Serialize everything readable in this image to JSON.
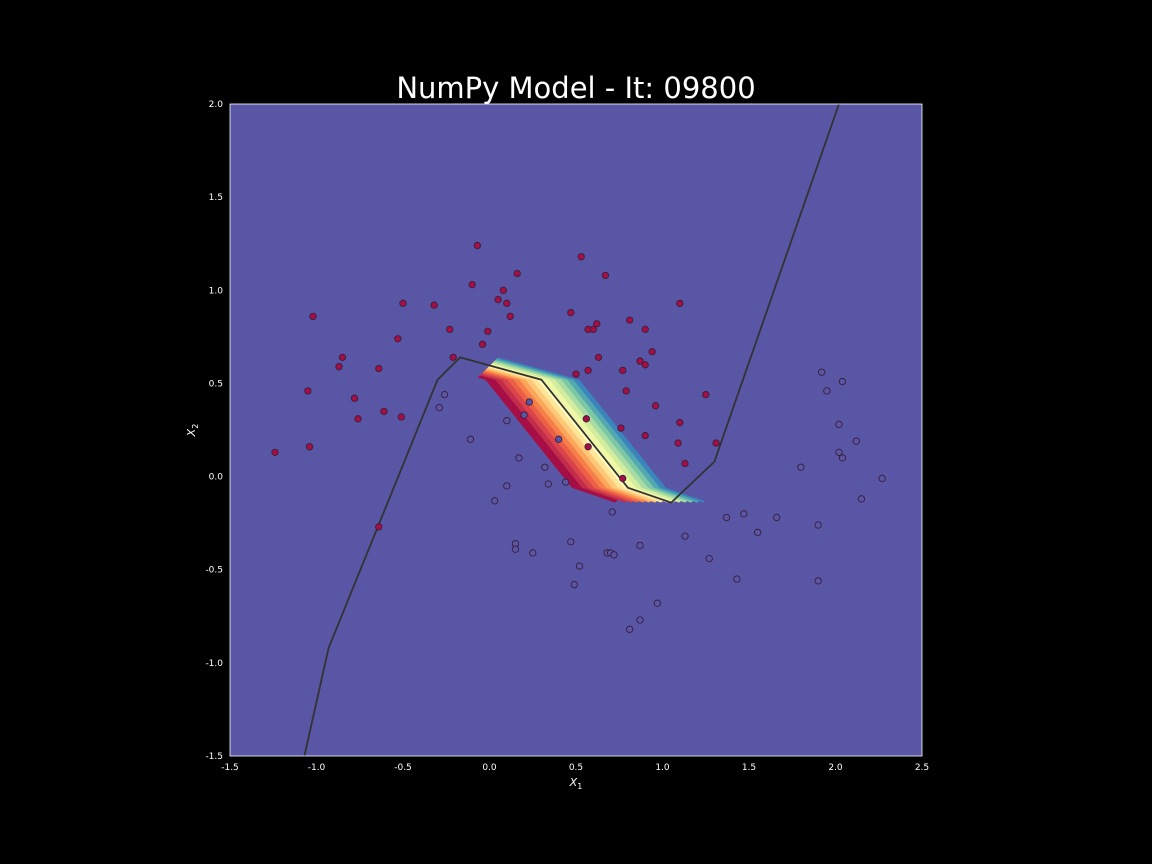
{
  "chart_data": {
    "type": "scatter",
    "title": "NumPy Model - It: 09800",
    "xlabel": "X",
    "xlabel_sub": "1",
    "ylabel": "X",
    "ylabel_sub": "2",
    "xlim": [
      -1.5,
      2.5
    ],
    "ylim": [
      -1.5,
      2.0
    ],
    "xticks": [
      -1.5,
      -1.0,
      -0.5,
      0.0,
      0.5,
      1.0,
      1.5,
      2.0,
      2.5
    ],
    "yticks": [
      -1.5,
      -1.0,
      -0.5,
      0.0,
      0.5,
      1.0,
      1.5,
      2.0
    ],
    "xtick_labels": [
      "-1.5",
      "-1.0",
      "-0.5",
      "0.0",
      "0.5",
      "1.0",
      "1.5",
      "2.0",
      "2.5"
    ],
    "ytick_labels": [
      "-1.5",
      "-1.0",
      "-0.5",
      "0.0",
      "0.5",
      "1.0",
      "1.5",
      "2.0"
    ],
    "grid": false,
    "background_contour": {
      "colormap": "Spectral",
      "class0_color": "#a50f45",
      "class1_color": "#5956a6",
      "decision_boundary": [
        [
          -1.07,
          -1.5
        ],
        [
          -0.93,
          -0.92
        ],
        [
          -0.3,
          0.52
        ],
        [
          -0.17,
          0.64
        ],
        [
          0.3,
          0.52
        ],
        [
          0.8,
          -0.06
        ],
        [
          1.05,
          -0.14
        ],
        [
          1.3,
          0.08
        ],
        [
          2.02,
          2.0
        ]
      ],
      "boundary_color": "#333333"
    },
    "series": [
      {
        "class": 0,
        "color": "#a50f45",
        "points": [
          [
            -0.07,
            1.24
          ],
          [
            0.16,
            1.09
          ],
          [
            0.53,
            1.18
          ],
          [
            0.67,
            1.08
          ],
          [
            -0.1,
            1.03
          ],
          [
            0.08,
            1.0
          ],
          [
            0.05,
            0.95
          ],
          [
            0.1,
            0.93
          ],
          [
            -0.5,
            0.93
          ],
          [
            -0.32,
            0.92
          ],
          [
            1.1,
            0.93
          ],
          [
            0.12,
            0.86
          ],
          [
            0.47,
            0.88
          ],
          [
            -1.02,
            0.86
          ],
          [
            0.81,
            0.84
          ],
          [
            0.62,
            0.82
          ],
          [
            0.57,
            0.79
          ],
          [
            0.6,
            0.79
          ],
          [
            -0.23,
            0.79
          ],
          [
            -0.01,
            0.78
          ],
          [
            0.9,
            0.79
          ],
          [
            -0.53,
            0.74
          ],
          [
            -0.04,
            0.71
          ],
          [
            0.94,
            0.67
          ],
          [
            -0.85,
            0.64
          ],
          [
            -0.21,
            0.64
          ],
          [
            0.63,
            0.64
          ],
          [
            0.87,
            0.62
          ],
          [
            -0.87,
            0.59
          ],
          [
            0.9,
            0.6
          ],
          [
            -0.64,
            0.58
          ],
          [
            0.57,
            0.57
          ],
          [
            0.77,
            0.57
          ],
          [
            0.5,
            0.55
          ],
          [
            -1.05,
            0.46
          ],
          [
            0.79,
            0.46
          ],
          [
            1.25,
            0.44
          ],
          [
            -0.78,
            0.42
          ],
          [
            0.96,
            0.38
          ],
          [
            -0.61,
            0.35
          ],
          [
            -0.76,
            0.31
          ],
          [
            -0.51,
            0.32
          ],
          [
            0.56,
            0.31
          ],
          [
            1.1,
            0.29
          ],
          [
            0.76,
            0.26
          ],
          [
            0.9,
            0.22
          ],
          [
            1.09,
            0.18
          ],
          [
            1.31,
            0.18
          ],
          [
            -1.04,
            0.16
          ],
          [
            0.57,
            0.16
          ],
          [
            -1.24,
            0.13
          ],
          [
            1.13,
            0.07
          ],
          [
            0.77,
            -0.01
          ],
          [
            -0.64,
            -0.27
          ]
        ]
      },
      {
        "class": 1,
        "color": "#5956a6",
        "points": [
          [
            -0.26,
            0.44
          ],
          [
            -0.29,
            0.37
          ],
          [
            0.23,
            0.4
          ],
          [
            0.2,
            0.33
          ],
          [
            0.1,
            0.3
          ],
          [
            -0.11,
            0.2
          ],
          [
            0.4,
            0.2
          ],
          [
            0.17,
            0.1
          ],
          [
            0.32,
            0.05
          ],
          [
            0.44,
            -0.03
          ],
          [
            0.34,
            -0.04
          ],
          [
            0.1,
            -0.05
          ],
          [
            0.03,
            -0.13
          ],
          [
            0.71,
            -0.19
          ],
          [
            0.47,
            -0.35
          ],
          [
            0.15,
            -0.36
          ],
          [
            0.15,
            -0.39
          ],
          [
            0.25,
            -0.41
          ],
          [
            0.68,
            -0.41
          ],
          [
            0.7,
            -0.41
          ],
          [
            0.72,
            -0.42
          ],
          [
            0.52,
            -0.48
          ],
          [
            0.49,
            -0.58
          ],
          [
            0.87,
            -0.37
          ],
          [
            0.97,
            -0.68
          ],
          [
            0.87,
            -0.77
          ],
          [
            0.81,
            -0.82
          ],
          [
            1.13,
            -0.32
          ],
          [
            1.27,
            -0.44
          ],
          [
            1.37,
            -0.22
          ],
          [
            1.47,
            -0.2
          ],
          [
            1.43,
            -0.55
          ],
          [
            1.55,
            -0.3
          ],
          [
            1.66,
            -0.22
          ],
          [
            1.8,
            0.05
          ],
          [
            1.9,
            -0.26
          ],
          [
            1.9,
            -0.56
          ],
          [
            1.92,
            0.56
          ],
          [
            1.95,
            0.46
          ],
          [
            2.04,
            0.51
          ],
          [
            2.02,
            0.28
          ],
          [
            2.02,
            0.13
          ],
          [
            2.04,
            0.1
          ],
          [
            2.12,
            0.19
          ],
          [
            2.15,
            -0.12
          ],
          [
            2.27,
            -0.01
          ]
        ]
      }
    ]
  }
}
